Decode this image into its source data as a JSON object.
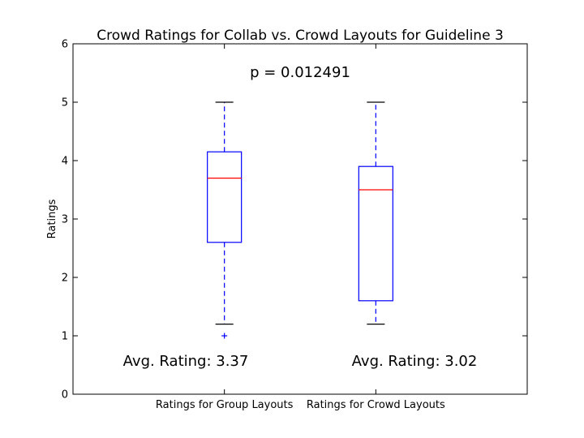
{
  "chart_data": {
    "type": "box",
    "title": "Crowd Ratings for Collab vs. Crowd Layouts for Guideline 3",
    "xlabel": "",
    "ylabel": "Ratings",
    "ylim": [
      0,
      6
    ],
    "yticks": [
      0,
      1,
      2,
      3,
      4,
      5,
      6
    ],
    "grid": false,
    "categories": [
      "Ratings for Group Layouts",
      "Ratings for Crowd Layouts"
    ],
    "boxes": [
      {
        "whisker_low": 1.2,
        "q1": 2.6,
        "median": 3.7,
        "q3": 4.15,
        "whisker_high": 5.0,
        "outliers": [
          1.0
        ]
      },
      {
        "whisker_low": 1.2,
        "q1": 1.6,
        "median": 3.5,
        "q3": 3.9,
        "whisker_high": 5.0,
        "outliers": []
      }
    ],
    "annotations": {
      "p_value": "p = 0.012491",
      "averages": [
        "Avg. Rating: 3.37",
        "Avg. Rating: 3.02"
      ]
    },
    "colors": {
      "box": "#0000ff",
      "median": "#ff0000",
      "caps": "#000000",
      "outlier": "#0000ff"
    }
  }
}
